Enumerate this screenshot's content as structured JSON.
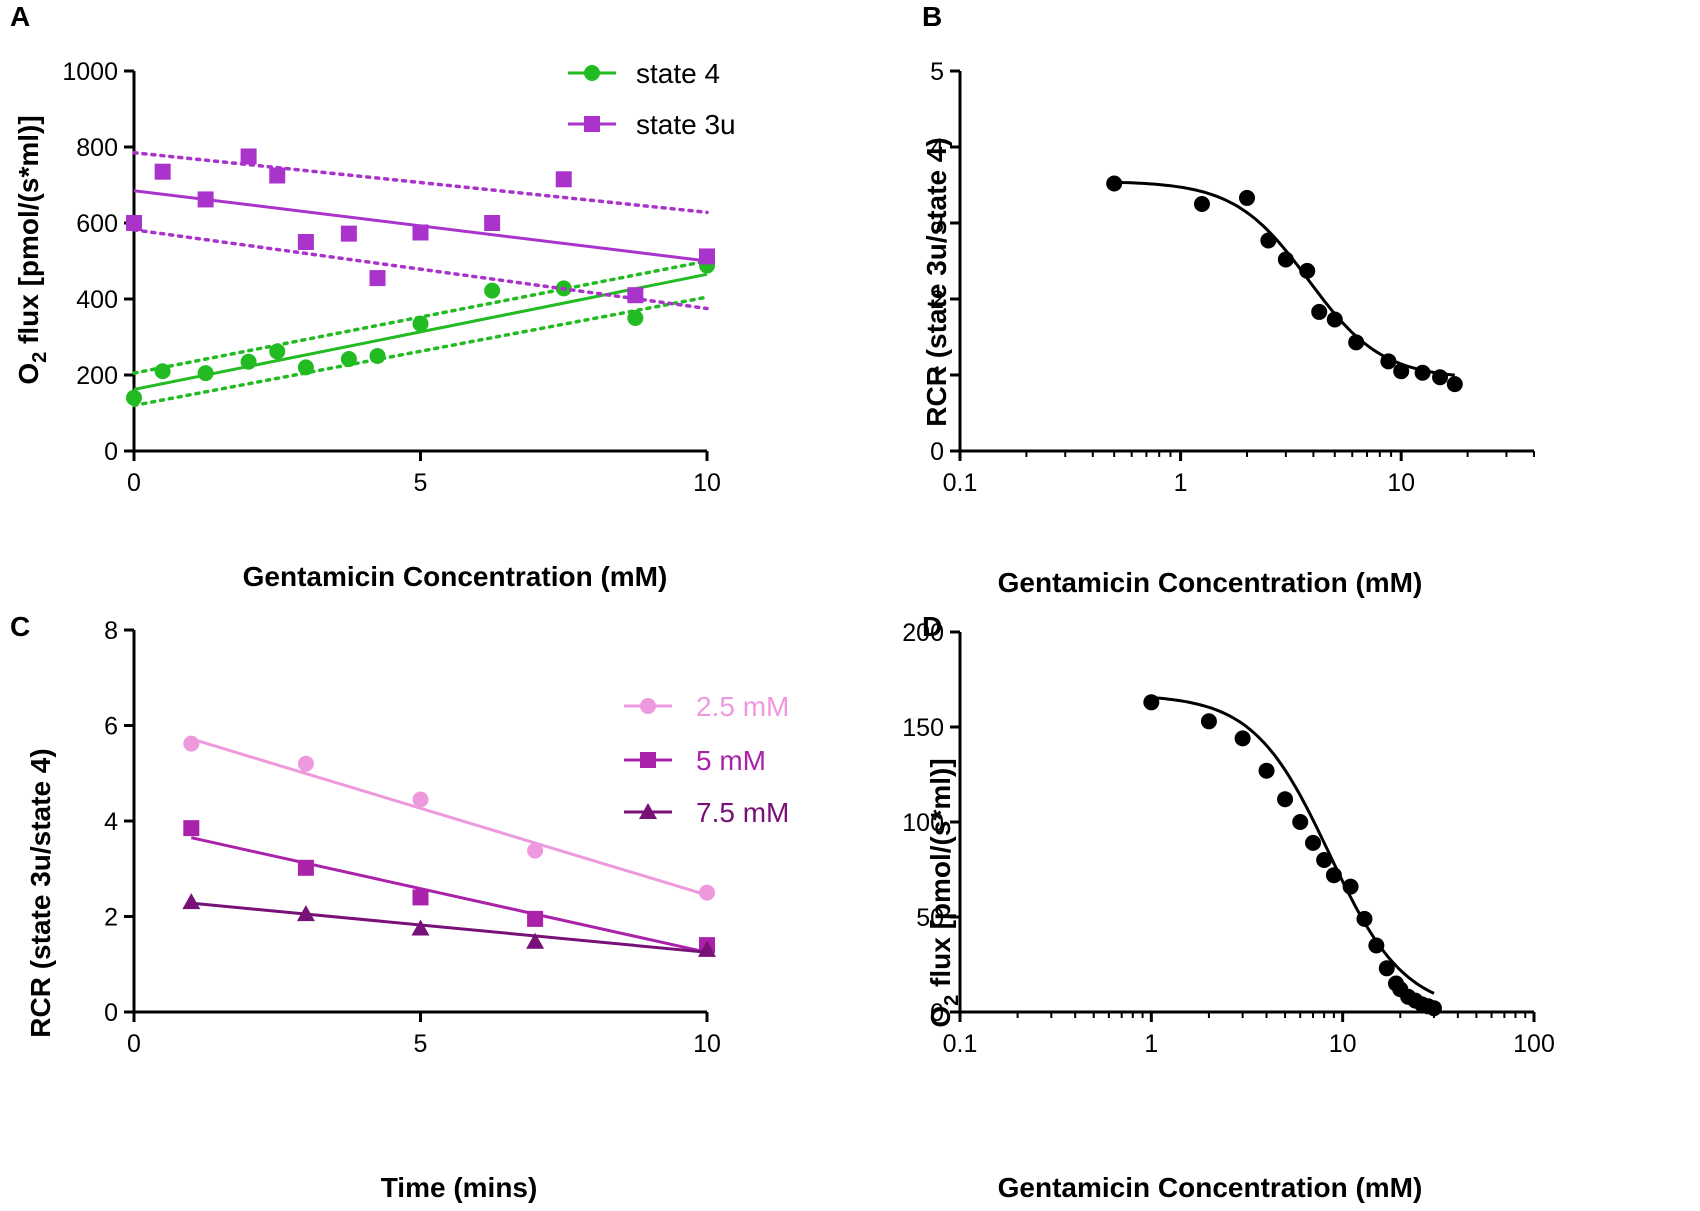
{
  "chart_data": [
    {
      "panel": "A",
      "type": "scatter",
      "xlabel": "Gentamicin Concentration (mM)",
      "ylabel_main": "O",
      "ylabel_sub": "2",
      "ylabel_rest": " flux [pmol/(s*ml)]",
      "xlim": [
        0,
        10
      ],
      "ylim": [
        0,
        1000
      ],
      "xticks": [
        "0",
        "5",
        "10"
      ],
      "yticks": [
        "0",
        "200",
        "400",
        "600",
        "800",
        "1000"
      ],
      "legend_position": "top-right",
      "series": [
        {
          "name": "state 4",
          "color": "#22bb22",
          "marker": "circle",
          "x": [
            0,
            0.5,
            1.25,
            2,
            2.5,
            3,
            3.75,
            4.25,
            5,
            6.25,
            7.5,
            8.75,
            10
          ],
          "y": [
            140,
            210,
            205,
            235,
            262,
            220,
            242,
            250,
            335,
            422,
            428,
            350,
            488
          ],
          "fit": {
            "x": [
              0,
              10
            ],
            "y": [
              162,
              465
            ]
          },
          "ci_upper": {
            "x": [
              0,
              10
            ],
            "y": [
              205,
              500
            ]
          },
          "ci_lower": {
            "x": [
              0,
              10
            ],
            "y": [
              120,
              405
            ]
          }
        },
        {
          "name": "state 3u",
          "color": "#aa33cc",
          "marker": "square",
          "x": [
            0,
            0.5,
            1.25,
            2,
            2.5,
            3,
            3.75,
            4.25,
            5,
            6.25,
            7.5,
            8.75,
            10
          ],
          "y": [
            600,
            735,
            662,
            775,
            725,
            550,
            572,
            455,
            575,
            600,
            715,
            410,
            512
          ],
          "fit": {
            "x": [
              0,
              10
            ],
            "y": [
              685,
              500
            ]
          },
          "ci_upper": {
            "x": [
              0,
              10
            ],
            "y": [
              785,
              628
            ]
          },
          "ci_lower": {
            "x": [
              0,
              10
            ],
            "y": [
              582,
              375
            ]
          }
        }
      ]
    },
    {
      "panel": "B",
      "type": "scatter",
      "xscale": "log",
      "xlabel": "Gentamicin Concentration (mM)",
      "ylabel": "RCR (state 3u/state 4)",
      "xlim": [
        0.1,
        40
      ],
      "ylim": [
        0,
        5
      ],
      "xticks": [
        "0.1",
        "1",
        "10"
      ],
      "yticks": [
        "0",
        "1",
        "2",
        "3",
        "4",
        "5"
      ],
      "series": [
        {
          "name": "RCR",
          "color": "#000000",
          "marker": "circle",
          "x": [
            0.5,
            1.25,
            2,
            2.5,
            3,
            3.75,
            4.25,
            5,
            6.25,
            8.75,
            10,
            12.5,
            15,
            17.5
          ],
          "y": [
            3.52,
            3.25,
            3.33,
            2.77,
            2.52,
            2.37,
            1.83,
            1.73,
            1.43,
            1.18,
            1.05,
            1.03,
            0.97,
            0.88
          ],
          "fit_params": {
            "top": 3.55,
            "bottom": 0.95,
            "ec50": 3.8,
            "hill": 2.6
          }
        }
      ]
    },
    {
      "panel": "C",
      "type": "scatter",
      "xlabel": "Time (mins)",
      "ylabel": "RCR (state 3u/state 4)",
      "xlim": [
        0,
        10
      ],
      "ylim": [
        0,
        8
      ],
      "xticks": [
        "0",
        "5",
        "10"
      ],
      "yticks": [
        "0",
        "2",
        "4",
        "6",
        "8"
      ],
      "legend_position": "top-right",
      "series": [
        {
          "name": "2.5 mM",
          "color": "#ee99dd",
          "marker": "circle",
          "x": [
            1,
            3,
            5,
            7,
            10
          ],
          "y": [
            5.62,
            5.2,
            4.45,
            3.38,
            2.5
          ],
          "fit": {
            "x": [
              1,
              10
            ],
            "y": [
              5.72,
              2.45
            ]
          }
        },
        {
          "name": "5 mM",
          "color": "#aa22aa",
          "marker": "square",
          "x": [
            1,
            3,
            5,
            7,
            10
          ],
          "y": [
            3.85,
            3.02,
            2.4,
            1.95,
            1.4
          ],
          "fit": {
            "x": [
              1,
              10
            ],
            "y": [
              3.65,
              1.25
            ]
          }
        },
        {
          "name": "7.5 mM",
          "color": "#771177",
          "marker": "triangle",
          "x": [
            1,
            3,
            5,
            7,
            10
          ],
          "y": [
            2.3,
            2.05,
            1.75,
            1.47,
            1.3
          ],
          "fit": {
            "x": [
              1,
              10
            ],
            "y": [
              2.28,
              1.25
            ]
          }
        }
      ]
    },
    {
      "panel": "D",
      "type": "scatter",
      "xscale": "log",
      "xlabel": "Gentamicin Concentration (mM)",
      "ylabel_main": "O",
      "ylabel_sub": "2",
      "ylabel_rest": " flux [pmol/(s*ml)]",
      "xlim": [
        0.1,
        100
      ],
      "ylim": [
        0,
        200
      ],
      "xticks": [
        "0.1",
        "1",
        "10",
        "100"
      ],
      "yticks": [
        "0",
        "50",
        "100",
        "150",
        "200"
      ],
      "series": [
        {
          "name": "O2 flux",
          "color": "#000000",
          "marker": "circle",
          "x": [
            1,
            2,
            3,
            4,
            5,
            6,
            7,
            8,
            9,
            11,
            13,
            15,
            17,
            19,
            20,
            22,
            24,
            26,
            28,
            30
          ],
          "y": [
            163,
            153,
            144,
            127,
            112,
            100,
            89,
            80,
            72,
            66,
            49,
            35,
            23,
            15,
            12,
            8,
            6,
            4,
            3,
            2
          ],
          "fit_params": {
            "top": 167,
            "bottom": 0,
            "ec50": 8.5,
            "hill": 2.2
          }
        }
      ]
    }
  ],
  "panel_labels": [
    "A",
    "B",
    "C",
    "D"
  ]
}
